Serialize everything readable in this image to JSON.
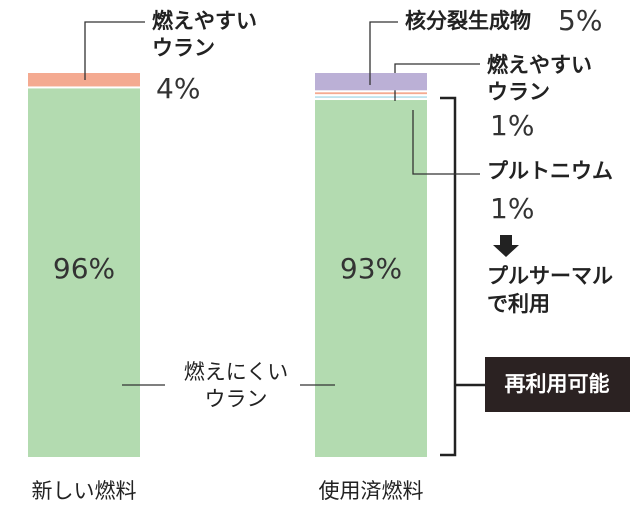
{
  "chart_data": {
    "type": "stacked_bar",
    "categories": [
      "新しい燃料",
      "使用済燃料"
    ],
    "series": [
      {
        "name": "燃えにくい\nウラン",
        "color": "#b3dbb0",
        "values": [
          96,
          93
        ],
        "value_labels": [
          "96%",
          "93%"
        ]
      },
      {
        "name": "プルトニウム",
        "color": "#bfe3ee",
        "values": [
          null,
          1
        ],
        "value_labels": [
          null,
          "1%"
        ]
      },
      {
        "name": "燃えやすい\nウラン",
        "color": "#f4aa91",
        "values": [
          4,
          1
        ],
        "value_labels": [
          "4%",
          "1%"
        ]
      },
      {
        "name": "核分裂生成物",
        "color": "#bbb0d6",
        "values": [
          null,
          5
        ],
        "value_labels": [
          null,
          "5%"
        ]
      }
    ],
    "annotations": [
      "プルサーマル\nで利用",
      "再利用可能"
    ]
  }
}
